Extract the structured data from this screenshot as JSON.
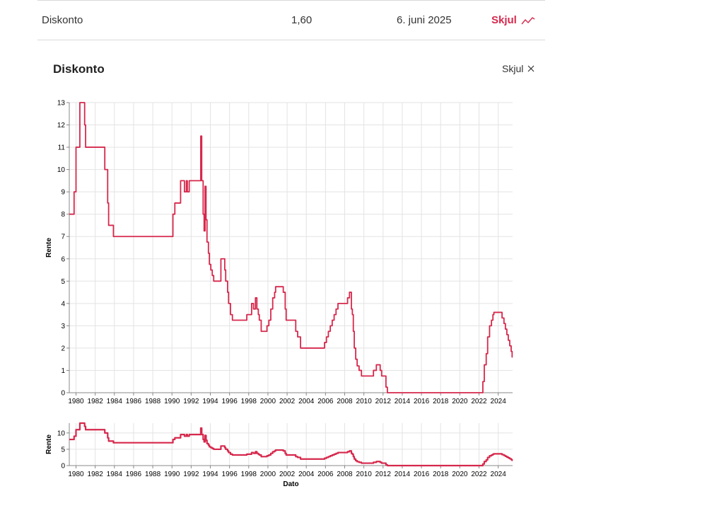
{
  "rate_row": {
    "name": "Diskonto",
    "value": "1,60",
    "date": "6. juni 2025",
    "toggle_label": "Skjul"
  },
  "panel": {
    "title": "Diskonto",
    "close_label": "Skjul"
  },
  "colors": {
    "accent": "#d6284c"
  },
  "chart_data": [
    {
      "type": "line",
      "ylabel": "Rente",
      "xlabel": "",
      "xlim": [
        1979.3,
        2025.5
      ],
      "ylim": [
        0,
        13
      ],
      "y_ticks": [
        0,
        1,
        2,
        3,
        4,
        5,
        6,
        7,
        8,
        9,
        10,
        11,
        12,
        13
      ],
      "x_ticks": [
        1980,
        1982,
        1984,
        1986,
        1988,
        1990,
        1992,
        1994,
        1996,
        1998,
        2000,
        2002,
        2004,
        2006,
        2008,
        2010,
        2012,
        2014,
        2016,
        2018,
        2020,
        2022,
        2024
      ],
      "grid": true,
      "series": [
        {
          "values": [
            [
              1979.3,
              8.0
            ],
            [
              1979.8,
              8.0
            ],
            [
              1979.8,
              9.0
            ],
            [
              1980.0,
              9.0
            ],
            [
              1980.0,
              11.0
            ],
            [
              1980.4,
              11.0
            ],
            [
              1980.4,
              13.0
            ],
            [
              1980.9,
              13.0
            ],
            [
              1980.9,
              12.0
            ],
            [
              1981.0,
              12.0
            ],
            [
              1981.0,
              11.0
            ],
            [
              1983.0,
              11.0
            ],
            [
              1983.0,
              10.0
            ],
            [
              1983.3,
              10.0
            ],
            [
              1983.3,
              8.5
            ],
            [
              1983.4,
              8.5
            ],
            [
              1983.4,
              7.5
            ],
            [
              1983.9,
              7.5
            ],
            [
              1983.9,
              7.0
            ],
            [
              1990.1,
              7.0
            ],
            [
              1990.1,
              8.0
            ],
            [
              1990.3,
              8.0
            ],
            [
              1990.3,
              8.5
            ],
            [
              1990.9,
              8.5
            ],
            [
              1990.9,
              9.5
            ],
            [
              1991.3,
              9.5
            ],
            [
              1991.3,
              9.0
            ],
            [
              1991.5,
              9.0
            ],
            [
              1991.5,
              9.5
            ],
            [
              1991.6,
              9.5
            ],
            [
              1991.6,
              9.0
            ],
            [
              1991.8,
              9.0
            ],
            [
              1991.8,
              9.5
            ],
            [
              1993.0,
              9.5
            ],
            [
              1993.0,
              11.5
            ],
            [
              1993.1,
              11.5
            ],
            [
              1993.1,
              9.5
            ],
            [
              1993.25,
              9.5
            ],
            [
              1993.25,
              8.0
            ],
            [
              1993.35,
              8.0
            ],
            [
              1993.35,
              7.25
            ],
            [
              1993.45,
              7.25
            ],
            [
              1993.45,
              9.25
            ],
            [
              1993.55,
              9.25
            ],
            [
              1993.55,
              7.75
            ],
            [
              1993.65,
              7.75
            ],
            [
              1993.65,
              6.75
            ],
            [
              1993.8,
              6.75
            ],
            [
              1993.8,
              6.25
            ],
            [
              1993.9,
              6.25
            ],
            [
              1993.9,
              5.75
            ],
            [
              1994.05,
              5.75
            ],
            [
              1994.05,
              5.5
            ],
            [
              1994.2,
              5.5
            ],
            [
              1994.2,
              5.25
            ],
            [
              1994.35,
              5.25
            ],
            [
              1994.35,
              5.0
            ],
            [
              1995.1,
              5.0
            ],
            [
              1995.1,
              6.0
            ],
            [
              1995.5,
              6.0
            ],
            [
              1995.5,
              5.5
            ],
            [
              1995.6,
              5.5
            ],
            [
              1995.6,
              5.0
            ],
            [
              1995.8,
              5.0
            ],
            [
              1995.8,
              4.5
            ],
            [
              1995.9,
              4.5
            ],
            [
              1995.9,
              4.0
            ],
            [
              1996.1,
              4.0
            ],
            [
              1996.1,
              3.5
            ],
            [
              1996.3,
              3.5
            ],
            [
              1996.3,
              3.25
            ],
            [
              1997.8,
              3.25
            ],
            [
              1997.8,
              3.5
            ],
            [
              1998.3,
              3.5
            ],
            [
              1998.3,
              4.0
            ],
            [
              1998.5,
              4.0
            ],
            [
              1998.5,
              3.75
            ],
            [
              1998.7,
              3.75
            ],
            [
              1998.7,
              4.25
            ],
            [
              1998.85,
              4.25
            ],
            [
              1998.85,
              3.75
            ],
            [
              1999.0,
              3.75
            ],
            [
              1999.0,
              3.5
            ],
            [
              1999.1,
              3.5
            ],
            [
              1999.1,
              3.25
            ],
            [
              1999.3,
              3.25
            ],
            [
              1999.3,
              2.75
            ],
            [
              1999.9,
              2.75
            ],
            [
              1999.9,
              3.0
            ],
            [
              2000.1,
              3.0
            ],
            [
              2000.1,
              3.25
            ],
            [
              2000.3,
              3.25
            ],
            [
              2000.3,
              3.75
            ],
            [
              2000.5,
              3.75
            ],
            [
              2000.5,
              4.25
            ],
            [
              2000.7,
              4.25
            ],
            [
              2000.7,
              4.5
            ],
            [
              2000.8,
              4.5
            ],
            [
              2000.8,
              4.75
            ],
            [
              2001.6,
              4.75
            ],
            [
              2001.6,
              4.5
            ],
            [
              2001.8,
              4.5
            ],
            [
              2001.8,
              3.75
            ],
            [
              2001.9,
              3.75
            ],
            [
              2001.9,
              3.25
            ],
            [
              2002.9,
              3.25
            ],
            [
              2002.9,
              2.75
            ],
            [
              2003.1,
              2.75
            ],
            [
              2003.1,
              2.5
            ],
            [
              2003.4,
              2.5
            ],
            [
              2003.4,
              2.0
            ],
            [
              2005.9,
              2.0
            ],
            [
              2005.9,
              2.25
            ],
            [
              2006.1,
              2.25
            ],
            [
              2006.1,
              2.5
            ],
            [
              2006.3,
              2.5
            ],
            [
              2006.3,
              2.75
            ],
            [
              2006.5,
              2.75
            ],
            [
              2006.5,
              3.0
            ],
            [
              2006.7,
              3.0
            ],
            [
              2006.7,
              3.25
            ],
            [
              2006.9,
              3.25
            ],
            [
              2006.9,
              3.5
            ],
            [
              2007.1,
              3.5
            ],
            [
              2007.1,
              3.75
            ],
            [
              2007.3,
              3.75
            ],
            [
              2007.3,
              4.0
            ],
            [
              2008.3,
              4.0
            ],
            [
              2008.3,
              4.25
            ],
            [
              2008.5,
              4.25
            ],
            [
              2008.5,
              4.5
            ],
            [
              2008.7,
              4.5
            ],
            [
              2008.7,
              3.75
            ],
            [
              2008.8,
              3.75
            ],
            [
              2008.8,
              3.5
            ],
            [
              2008.9,
              3.5
            ],
            [
              2008.9,
              2.75
            ],
            [
              2009.0,
              2.75
            ],
            [
              2009.0,
              2.0
            ],
            [
              2009.15,
              2.0
            ],
            [
              2009.15,
              1.5
            ],
            [
              2009.3,
              1.5
            ],
            [
              2009.3,
              1.2
            ],
            [
              2009.5,
              1.2
            ],
            [
              2009.5,
              1.0
            ],
            [
              2009.75,
              1.0
            ],
            [
              2009.75,
              0.75
            ],
            [
              2011.0,
              0.75
            ],
            [
              2011.0,
              1.0
            ],
            [
              2011.3,
              1.0
            ],
            [
              2011.3,
              1.25
            ],
            [
              2011.7,
              1.25
            ],
            [
              2011.7,
              1.0
            ],
            [
              2011.85,
              1.0
            ],
            [
              2011.85,
              0.75
            ],
            [
              2012.3,
              0.75
            ],
            [
              2012.3,
              0.25
            ],
            [
              2012.45,
              0.25
            ],
            [
              2012.45,
              0.0
            ],
            [
              2022.4,
              0.0
            ],
            [
              2022.4,
              0.5
            ],
            [
              2022.55,
              0.5
            ],
            [
              2022.55,
              1.25
            ],
            [
              2022.75,
              1.25
            ],
            [
              2022.75,
              1.75
            ],
            [
              2022.9,
              1.75
            ],
            [
              2022.9,
              2.5
            ],
            [
              2023.1,
              2.5
            ],
            [
              2023.1,
              3.0
            ],
            [
              2023.3,
              3.0
            ],
            [
              2023.3,
              3.25
            ],
            [
              2023.45,
              3.25
            ],
            [
              2023.45,
              3.5
            ],
            [
              2023.55,
              3.5
            ],
            [
              2023.55,
              3.6
            ],
            [
              2024.4,
              3.6
            ],
            [
              2024.4,
              3.35
            ],
            [
              2024.6,
              3.35
            ],
            [
              2024.6,
              3.1
            ],
            [
              2024.75,
              3.1
            ],
            [
              2024.75,
              2.85
            ],
            [
              2024.9,
              2.85
            ],
            [
              2024.9,
              2.6
            ],
            [
              2025.05,
              2.6
            ],
            [
              2025.05,
              2.35
            ],
            [
              2025.2,
              2.35
            ],
            [
              2025.2,
              2.1
            ],
            [
              2025.35,
              2.1
            ],
            [
              2025.35,
              1.85
            ],
            [
              2025.45,
              1.85
            ],
            [
              2025.45,
              1.6
            ],
            [
              2025.5,
              1.6
            ]
          ]
        }
      ]
    },
    {
      "type": "line",
      "role": "overview",
      "ylabel": "Rente",
      "xlabel": "Dato",
      "xlim": [
        1979.3,
        2025.5
      ],
      "ylim": [
        0,
        13
      ],
      "y_ticks": [
        0,
        5,
        10
      ],
      "x_ticks": [
        1980,
        1982,
        1984,
        1986,
        1988,
        1990,
        1992,
        1994,
        1996,
        1998,
        2000,
        2002,
        2004,
        2006,
        2008,
        2010,
        2012,
        2014,
        2016,
        2018,
        2020,
        2022,
        2024
      ],
      "grid": true
    }
  ]
}
